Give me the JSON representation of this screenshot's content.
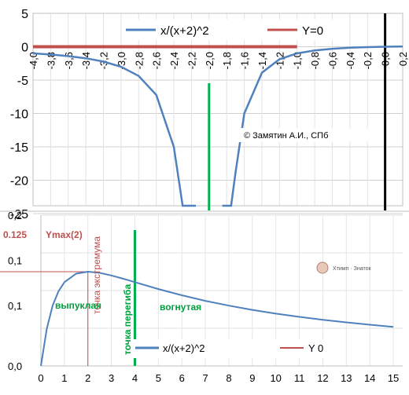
{
  "colors": {
    "curve": "#4f81bd",
    "zero_line": "#c0504d",
    "vertical_asymptote": "#00b050",
    "y_axis": "#000000",
    "grid": "#d0d0d0",
    "annotation_red": "#c0504d",
    "annotation_green": "#00a040"
  },
  "chart_data": [
    {
      "type": "line",
      "title": "",
      "xlabel": "",
      "ylabel": "",
      "xlim": [
        -4.0,
        0.2
      ],
      "ylim": [
        -25,
        5
      ],
      "x_ticks": [
        "-4,0",
        "-3,8",
        "-3,6",
        "-3,4",
        "-3,2",
        "-3,0",
        "-2,8",
        "-2,6",
        "-2,4",
        "-2,2",
        "-2,0",
        "-1,8",
        "-1,6",
        "-1,4",
        "-1,2",
        "-1,0",
        "-0,8",
        "-0,6",
        "-0,4",
        "-0,2",
        "0,0",
        "0,2"
      ],
      "y_ticks": [
        "5",
        "0",
        "-5",
        "-10",
        "-15",
        "-20",
        "-25"
      ],
      "grid": true,
      "legend_position": "top-center",
      "series": [
        {
          "name": "x/(x+2)^2",
          "branches": [
            {
              "x": [
                -4.0,
                -3.8,
                -3.6,
                -3.4,
                -3.2,
                -3.0,
                -2.8,
                -2.6,
                -2.4,
                -2.3,
                -2.25,
                -2.2,
                -2.15
              ],
              "y": [
                -1.0,
                -1.17,
                -1.41,
                -1.73,
                -2.22,
                -3.0,
                -4.38,
                -7.22,
                -15.0,
                -25.56,
                -36.0,
                -55.0,
                -95.56
              ]
            },
            {
              "x": [
                -1.85,
                -1.8,
                -1.75,
                -1.7,
                -1.6,
                -1.4,
                -1.2,
                -1.0,
                -0.8,
                -0.6,
                -0.4,
                -0.2,
                0.0,
                0.2
              ],
              "y": [
                -82.2,
                -45.0,
                -28.0,
                -18.89,
                -10.0,
                -3.89,
                -1.875,
                -1.0,
                -0.556,
                -0.306,
                -0.156,
                -0.062,
                0.0,
                0.041
              ]
            }
          ]
        },
        {
          "name": "Y=0",
          "x": [
            -4.0,
            -1.0
          ],
          "y": [
            0,
            0
          ]
        }
      ],
      "vertical_lines": [
        {
          "x": -2.0,
          "role": "asymptote"
        },
        {
          "x": 0.0,
          "role": "y-axis"
        }
      ],
      "annotations": [
        "© Замятин А.И., СПб"
      ]
    },
    {
      "type": "line",
      "title": "",
      "xlabel": "",
      "ylabel": "",
      "xlim": [
        0,
        15.4
      ],
      "ylim": [
        0,
        0.2
      ],
      "x_ticks": [
        "0",
        "1",
        "2",
        "3",
        "4",
        "5",
        "6",
        "7",
        "8",
        "9",
        "10",
        "11",
        "12",
        "13",
        "14",
        "15"
      ],
      "y_ticks": [
        "0,2",
        "0,1",
        "0,1",
        "0,0"
      ],
      "grid": true,
      "legend_position": "bottom-center",
      "series": [
        {
          "name": "x/(x+2)^2",
          "x": [
            0,
            0.25,
            0.5,
            0.75,
            1,
            1.5,
            2,
            2.5,
            3,
            3.5,
            4,
            5,
            6,
            7,
            8,
            9,
            10,
            11,
            12,
            13,
            14,
            15
          ],
          "y": [
            0,
            0.0494,
            0.08,
            0.0992,
            0.1111,
            0.1224,
            0.125,
            0.1235,
            0.12,
            0.1157,
            0.1111,
            0.102,
            0.0938,
            0.0864,
            0.08,
            0.0744,
            0.0694,
            0.0651,
            0.0612,
            0.0578,
            0.0547,
            0.0519
          ]
        },
        {
          "name": "Y  0",
          "x": [],
          "y": []
        }
      ],
      "markers": [
        {
          "x": 2,
          "y": 0.125,
          "label": "Ymax(2)",
          "value_label": "0.125"
        },
        {
          "x": 4,
          "label": "точка перегиба"
        }
      ],
      "annotations": {
        "extremum": "точка экстремума",
        "convex": "выпуклая",
        "concave": "вогнутая",
        "watermark": "Хтимп · Знаток"
      }
    }
  ]
}
